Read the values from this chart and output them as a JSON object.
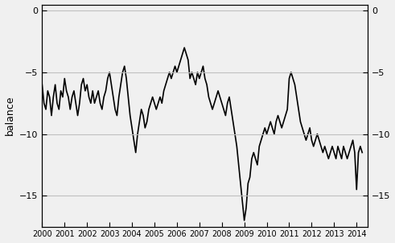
{
  "title": "",
  "ylabel": "balance",
  "xlim": [
    2000.0,
    2014.5
  ],
  "ylim": [
    -17.5,
    0.5
  ],
  "yticks": [
    0,
    -5,
    -10,
    -15
  ],
  "bg_color": "#f0f0f0",
  "line_color": "#000000",
  "grid_color": "#c0c0c0",
  "x": [
    2000.0,
    2000.083,
    2000.167,
    2000.25,
    2000.333,
    2000.417,
    2000.5,
    2000.583,
    2000.667,
    2000.75,
    2000.833,
    2000.917,
    2001.0,
    2001.083,
    2001.167,
    2001.25,
    2001.333,
    2001.417,
    2001.5,
    2001.583,
    2001.667,
    2001.75,
    2001.833,
    2001.917,
    2002.0,
    2002.083,
    2002.167,
    2002.25,
    2002.333,
    2002.417,
    2002.5,
    2002.583,
    2002.667,
    2002.75,
    2002.833,
    2002.917,
    2003.0,
    2003.083,
    2003.167,
    2003.25,
    2003.333,
    2003.417,
    2003.5,
    2003.583,
    2003.667,
    2003.75,
    2003.833,
    2003.917,
    2004.0,
    2004.083,
    2004.167,
    2004.25,
    2004.333,
    2004.417,
    2004.5,
    2004.583,
    2004.667,
    2004.75,
    2004.833,
    2004.917,
    2005.0,
    2005.083,
    2005.167,
    2005.25,
    2005.333,
    2005.417,
    2005.5,
    2005.583,
    2005.667,
    2005.75,
    2005.833,
    2005.917,
    2006.0,
    2006.083,
    2006.167,
    2006.25,
    2006.333,
    2006.417,
    2006.5,
    2006.583,
    2006.667,
    2006.75,
    2006.833,
    2006.917,
    2007.0,
    2007.083,
    2007.167,
    2007.25,
    2007.333,
    2007.417,
    2007.5,
    2007.583,
    2007.667,
    2007.75,
    2007.833,
    2007.917,
    2008.0,
    2008.083,
    2008.167,
    2008.25,
    2008.333,
    2008.417,
    2008.5,
    2008.583,
    2008.667,
    2008.75,
    2008.833,
    2008.917,
    2009.0,
    2009.083,
    2009.167,
    2009.25,
    2009.333,
    2009.417,
    2009.5,
    2009.583,
    2009.667,
    2009.75,
    2009.833,
    2009.917,
    2010.0,
    2010.083,
    2010.167,
    2010.25,
    2010.333,
    2010.417,
    2010.5,
    2010.583,
    2010.667,
    2010.75,
    2010.833,
    2010.917,
    2011.0,
    2011.083,
    2011.167,
    2011.25,
    2011.333,
    2011.417,
    2011.5,
    2011.583,
    2011.667,
    2011.75,
    2011.833,
    2011.917,
    2012.0,
    2012.083,
    2012.167,
    2012.25,
    2012.333,
    2012.417,
    2012.5,
    2012.583,
    2012.667,
    2012.75,
    2012.833,
    2012.917,
    2013.0,
    2013.083,
    2013.167,
    2013.25,
    2013.333,
    2013.417,
    2013.5,
    2013.583,
    2013.667,
    2013.75,
    2013.833,
    2013.917,
    2014.0,
    2014.083,
    2014.167,
    2014.25
  ],
  "y": [
    -6.0,
    -7.5,
    -8.0,
    -6.5,
    -7.0,
    -8.5,
    -7.0,
    -6.0,
    -7.5,
    -8.0,
    -6.5,
    -7.0,
    -5.5,
    -6.5,
    -7.0,
    -8.0,
    -7.0,
    -6.5,
    -7.5,
    -8.5,
    -7.5,
    -6.0,
    -5.5,
    -6.5,
    -6.0,
    -7.0,
    -7.5,
    -6.5,
    -7.5,
    -7.0,
    -6.5,
    -7.5,
    -8.0,
    -7.0,
    -6.5,
    -5.5,
    -5.0,
    -6.0,
    -7.0,
    -8.0,
    -8.5,
    -7.0,
    -6.0,
    -5.0,
    -4.5,
    -5.5,
    -7.0,
    -8.5,
    -9.5,
    -10.5,
    -11.5,
    -10.0,
    -9.0,
    -8.0,
    -8.5,
    -9.5,
    -9.0,
    -8.0,
    -7.5,
    -7.0,
    -7.5,
    -8.0,
    -7.5,
    -7.0,
    -7.5,
    -6.5,
    -6.0,
    -5.5,
    -5.0,
    -5.5,
    -5.0,
    -4.5,
    -5.0,
    -4.5,
    -4.0,
    -3.5,
    -3.0,
    -3.5,
    -4.0,
    -5.5,
    -5.0,
    -5.5,
    -6.0,
    -5.0,
    -5.5,
    -5.0,
    -4.5,
    -5.5,
    -6.0,
    -7.0,
    -7.5,
    -8.0,
    -7.5,
    -7.0,
    -6.5,
    -7.0,
    -7.5,
    -8.0,
    -8.5,
    -7.5,
    -7.0,
    -8.0,
    -9.0,
    -10.0,
    -11.0,
    -12.5,
    -14.0,
    -15.5,
    -17.0,
    -16.0,
    -14.0,
    -13.5,
    -12.0,
    -11.5,
    -12.0,
    -12.5,
    -11.0,
    -10.5,
    -10.0,
    -9.5,
    -10.0,
    -9.5,
    -9.0,
    -9.5,
    -10.0,
    -9.0,
    -8.5,
    -9.0,
    -9.5,
    -9.0,
    -8.5,
    -8.0,
    -5.5,
    -5.0,
    -5.5,
    -6.0,
    -7.0,
    -8.0,
    -9.0,
    -9.5,
    -10.0,
    -10.5,
    -10.0,
    -9.5,
    -10.5,
    -11.0,
    -10.5,
    -10.0,
    -10.5,
    -11.0,
    -11.5,
    -11.0,
    -11.5,
    -12.0,
    -11.5,
    -11.0,
    -11.5,
    -12.0,
    -11.0,
    -11.5,
    -12.0,
    -11.0,
    -11.5,
    -12.0,
    -11.5,
    -11.0,
    -10.5,
    -11.5,
    -14.5,
    -11.5,
    -11.0,
    -11.5
  ],
  "xticks": [
    2000,
    2001,
    2002,
    2003,
    2004,
    2005,
    2006,
    2007,
    2008,
    2009,
    2010,
    2011,
    2012,
    2013,
    2014
  ],
  "xtick_labels": [
    "2000",
    "2001",
    "2002",
    "2003",
    "2004",
    "2005",
    "2006",
    "2007",
    "2008",
    "2009",
    "2010",
    "2011",
    "2012",
    "2013",
    "2014"
  ],
  "figsize": [
    4.91,
    3.02
  ],
  "dpi": 100
}
